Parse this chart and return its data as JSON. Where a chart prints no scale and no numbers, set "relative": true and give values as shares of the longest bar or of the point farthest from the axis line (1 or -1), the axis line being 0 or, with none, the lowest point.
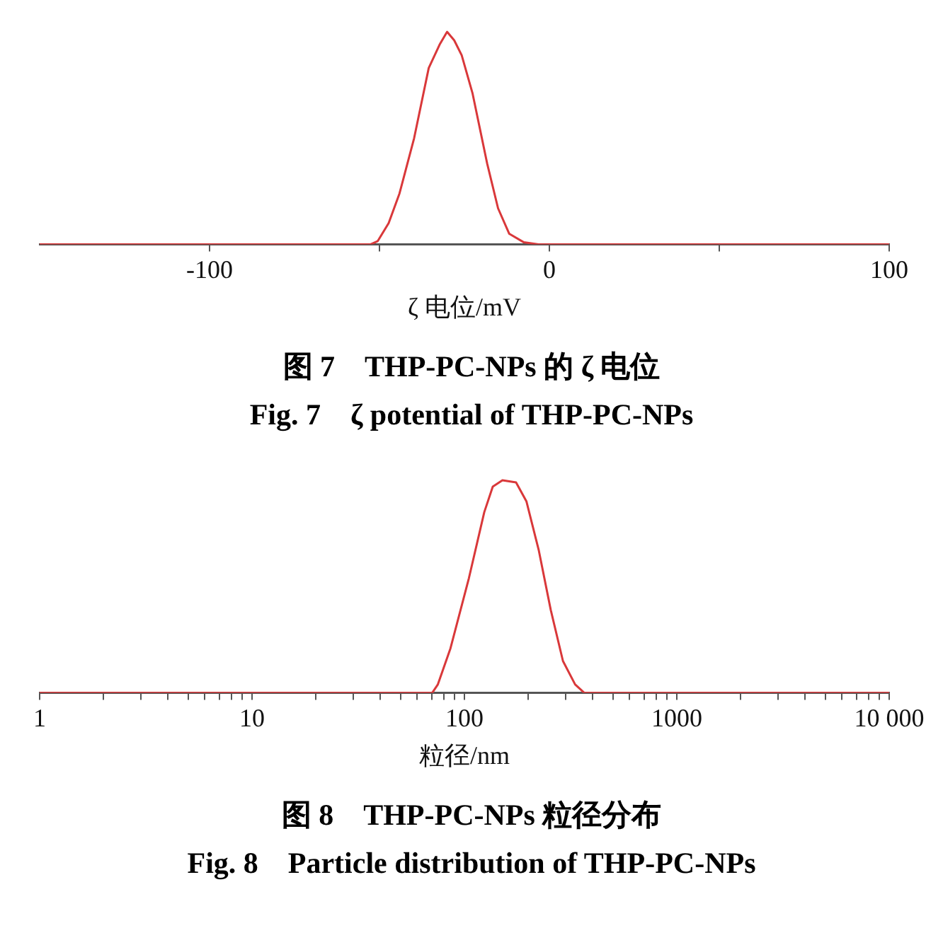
{
  "chart_data": [
    {
      "type": "line",
      "title": "图 7　THP-PC-NPs 的 ζ 电位",
      "subtitle": "Fig. 7　ζ potential of THP-PC-NPs",
      "xlabel": "ζ 电位/mV",
      "relative": true,
      "xlim": [
        -150,
        100
      ],
      "xticks": [
        -100,
        {
          "value": -50,
          "label": null
        },
        0,
        {
          "value": 50,
          "label": null
        },
        100
      ],
      "series": [
        {
          "color": "#d9383a",
          "x": [
            -150,
            -52.7,
            -50.5,
            -47.3,
            -44.1,
            -39.8,
            -35.5,
            -32.3,
            -30.1,
            -28.0,
            -25.8,
            -22.6,
            -18.3,
            -15.1,
            -11.8,
            -7.5,
            -3.2,
            100
          ],
          "values": [
            0,
            0,
            0.016,
            0.1,
            0.24,
            0.5,
            0.83,
            0.94,
            1,
            0.96,
            0.89,
            0.71,
            0.38,
            0.17,
            0.05,
            0.01,
            0,
            0
          ]
        }
      ]
    },
    {
      "type": "line",
      "title": "图 8　THP-PC-NPs 粒径分布",
      "subtitle": "Fig. 8　Particle distribution of THP-PC-NPs",
      "xlabel": "粒径/nm",
      "relative": true,
      "log": "x",
      "xlim": [
        1,
        10000
      ],
      "xticks": [
        1,
        {
          "value": 2,
          "label": null
        },
        {
          "value": 3,
          "label": null
        },
        {
          "value": 4,
          "label": null
        },
        {
          "value": 5,
          "label": null
        },
        {
          "value": 6,
          "label": null
        },
        {
          "value": 7,
          "label": null
        },
        {
          "value": 8,
          "label": null
        },
        {
          "value": 9,
          "label": null
        },
        10,
        {
          "value": 20,
          "label": null
        },
        {
          "value": 30,
          "label": null
        },
        {
          "value": 40,
          "label": null
        },
        {
          "value": 50,
          "label": null
        },
        {
          "value": 60,
          "label": null
        },
        {
          "value": 70,
          "label": null
        },
        {
          "value": 80,
          "label": null
        },
        {
          "value": 90,
          "label": null
        },
        100,
        {
          "value": 200,
          "label": null
        },
        {
          "value": 300,
          "label": null
        },
        {
          "value": 400,
          "label": null
        },
        {
          "value": 500,
          "label": null
        },
        {
          "value": 600,
          "label": null
        },
        {
          "value": 700,
          "label": null
        },
        {
          "value": 800,
          "label": null
        },
        {
          "value": 900,
          "label": null
        },
        1000,
        {
          "value": 2000,
          "label": null
        },
        {
          "value": 3000,
          "label": null
        },
        {
          "value": 4000,
          "label": null
        },
        {
          "value": 5000,
          "label": null
        },
        {
          "value": 6000,
          "label": null
        },
        {
          "value": 7000,
          "label": null
        },
        {
          "value": 8000,
          "label": null
        },
        {
          "value": 9000,
          "label": null
        },
        {
          "value": 10000,
          "label": "10 000"
        }
      ],
      "series": [
        {
          "color": "#d9383a",
          "x": [
            1,
            70.5,
            75,
            86,
            105,
            124,
            136,
            151,
            175,
            196,
            224,
            255,
            291,
            332,
            367,
            10000
          ],
          "values": [
            0,
            0,
            0.04,
            0.21,
            0.54,
            0.85,
            0.97,
            1,
            0.99,
            0.9,
            0.67,
            0.39,
            0.15,
            0.04,
            0,
            0
          ]
        }
      ]
    }
  ]
}
